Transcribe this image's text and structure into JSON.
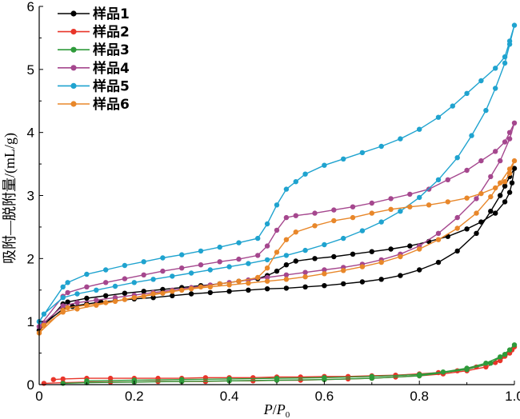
{
  "chart_data": {
    "type": "line",
    "xlabel_main": "P",
    "xlabel_sep": "/",
    "xlabel_sub_main": "P",
    "xlabel_sub": "0",
    "ylabel": "吸附—脱附量/(mL/g)",
    "xlim": [
      0,
      1.0
    ],
    "ylim": [
      0,
      6
    ],
    "xticks": [
      "0",
      "0.2",
      "0.4",
      "0.6",
      "0.8",
      "1.0"
    ],
    "yticks": [
      "0",
      "1",
      "2",
      "3",
      "4",
      "5",
      "6"
    ],
    "legend_position": "top-left",
    "series": [
      {
        "name": "样品1",
        "color": "#000000",
        "points": [
          [
            0.0,
            0.86
          ],
          [
            0.01,
            0.96
          ],
          [
            0.05,
            1.2
          ],
          [
            0.07,
            1.24
          ],
          [
            0.1,
            1.28
          ],
          [
            0.13,
            1.31
          ],
          [
            0.16,
            1.33
          ],
          [
            0.2,
            1.36
          ],
          [
            0.24,
            1.38
          ],
          [
            0.28,
            1.41
          ],
          [
            0.32,
            1.44
          ],
          [
            0.36,
            1.46
          ],
          [
            0.4,
            1.48
          ],
          [
            0.44,
            1.5
          ],
          [
            0.48,
            1.52
          ],
          [
            0.52,
            1.53
          ],
          [
            0.56,
            1.55
          ],
          [
            0.6,
            1.57
          ],
          [
            0.64,
            1.6
          ],
          [
            0.68,
            1.63
          ],
          [
            0.72,
            1.67
          ],
          [
            0.76,
            1.73
          ],
          [
            0.8,
            1.82
          ],
          [
            0.84,
            1.94
          ],
          [
            0.88,
            2.12
          ],
          [
            0.92,
            2.4
          ],
          [
            0.95,
            2.75
          ],
          [
            0.97,
            3.0
          ],
          [
            0.98,
            3.15
          ],
          [
            0.99,
            3.3
          ],
          [
            1.0,
            3.43
          ],
          [
            0.995,
            3.2
          ],
          [
            0.99,
            3.05
          ],
          [
            0.98,
            2.9
          ],
          [
            0.96,
            2.72
          ],
          [
            0.93,
            2.58
          ],
          [
            0.9,
            2.47
          ],
          [
            0.86,
            2.35
          ],
          [
            0.82,
            2.27
          ],
          [
            0.78,
            2.2
          ],
          [
            0.74,
            2.15
          ],
          [
            0.7,
            2.11
          ],
          [
            0.66,
            2.07
          ],
          [
            0.62,
            2.03
          ],
          [
            0.58,
            2.0
          ],
          [
            0.54,
            1.96
          ],
          [
            0.52,
            1.9
          ],
          [
            0.5,
            1.8
          ],
          [
            0.48,
            1.73
          ],
          [
            0.46,
            1.68
          ],
          [
            0.42,
            1.64
          ],
          [
            0.38,
            1.6
          ],
          [
            0.34,
            1.57
          ],
          [
            0.3,
            1.54
          ],
          [
            0.26,
            1.51
          ],
          [
            0.22,
            1.48
          ],
          [
            0.18,
            1.45
          ],
          [
            0.14,
            1.41
          ],
          [
            0.1,
            1.37
          ],
          [
            0.06,
            1.31
          ],
          [
            0.05,
            1.28
          ],
          [
            0.0,
            0.86
          ]
        ]
      },
      {
        "name": "样品2",
        "color": "#e8352a",
        "points": [
          [
            0.01,
            0.02
          ],
          [
            0.05,
            0.03
          ],
          [
            0.1,
            0.04
          ],
          [
            0.15,
            0.04
          ],
          [
            0.2,
            0.04
          ],
          [
            0.25,
            0.05
          ],
          [
            0.3,
            0.05
          ],
          [
            0.35,
            0.05
          ],
          [
            0.4,
            0.06
          ],
          [
            0.45,
            0.06
          ],
          [
            0.5,
            0.07
          ],
          [
            0.55,
            0.07
          ],
          [
            0.6,
            0.08
          ],
          [
            0.65,
            0.09
          ],
          [
            0.7,
            0.1
          ],
          [
            0.75,
            0.12
          ],
          [
            0.8,
            0.14
          ],
          [
            0.85,
            0.17
          ],
          [
            0.9,
            0.22
          ],
          [
            0.94,
            0.28
          ],
          [
            0.97,
            0.38
          ],
          [
            0.99,
            0.5
          ],
          [
            1.0,
            0.6
          ],
          [
            0.995,
            0.55
          ],
          [
            0.98,
            0.45
          ],
          [
            0.96,
            0.35
          ],
          [
            0.92,
            0.28
          ],
          [
            0.88,
            0.22
          ],
          [
            0.84,
            0.19
          ],
          [
            0.8,
            0.17
          ],
          [
            0.75,
            0.15
          ],
          [
            0.7,
            0.14
          ],
          [
            0.65,
            0.13
          ],
          [
            0.6,
            0.13
          ],
          [
            0.55,
            0.12
          ],
          [
            0.5,
            0.12
          ],
          [
            0.45,
            0.11
          ],
          [
            0.4,
            0.11
          ],
          [
            0.35,
            0.11
          ],
          [
            0.3,
            0.1
          ],
          [
            0.25,
            0.1
          ],
          [
            0.2,
            0.1
          ],
          [
            0.15,
            0.1
          ],
          [
            0.1,
            0.1
          ],
          [
            0.05,
            0.09
          ],
          [
            0.03,
            0.08
          ]
        ]
      },
      {
        "name": "样品3",
        "color": "#2e9a3a",
        "points": [
          [
            0.05,
            0.02
          ],
          [
            0.1,
            0.03
          ],
          [
            0.2,
            0.04
          ],
          [
            0.3,
            0.05
          ],
          [
            0.4,
            0.06
          ],
          [
            0.5,
            0.07
          ],
          [
            0.6,
            0.08
          ],
          [
            0.7,
            0.1
          ],
          [
            0.8,
            0.14
          ],
          [
            0.9,
            0.24
          ],
          [
            0.95,
            0.34
          ],
          [
            0.98,
            0.48
          ],
          [
            1.0,
            0.63
          ],
          [
            0.99,
            0.55
          ],
          [
            0.97,
            0.44
          ],
          [
            0.94,
            0.34
          ],
          [
            0.9,
            0.26
          ],
          [
            0.85,
            0.2
          ],
          [
            0.8,
            0.16
          ],
          [
            0.7,
            0.13
          ],
          [
            0.6,
            0.11
          ],
          [
            0.5,
            0.1
          ],
          [
            0.4,
            0.09
          ],
          [
            0.3,
            0.08
          ],
          [
            0.2,
            0.07
          ],
          [
            0.1,
            0.06
          ]
        ]
      },
      {
        "name": "样品4",
        "color": "#a5478e",
        "points": [
          [
            0.0,
            0.92
          ],
          [
            0.01,
            0.98
          ],
          [
            0.05,
            1.25
          ],
          [
            0.08,
            1.3
          ],
          [
            0.12,
            1.34
          ],
          [
            0.16,
            1.38
          ],
          [
            0.2,
            1.42
          ],
          [
            0.24,
            1.46
          ],
          [
            0.28,
            1.5
          ],
          [
            0.32,
            1.54
          ],
          [
            0.36,
            1.58
          ],
          [
            0.4,
            1.62
          ],
          [
            0.44,
            1.66
          ],
          [
            0.48,
            1.7
          ],
          [
            0.52,
            1.74
          ],
          [
            0.56,
            1.78
          ],
          [
            0.6,
            1.82
          ],
          [
            0.64,
            1.86
          ],
          [
            0.68,
            1.91
          ],
          [
            0.72,
            1.98
          ],
          [
            0.76,
            2.07
          ],
          [
            0.8,
            2.2
          ],
          [
            0.84,
            2.4
          ],
          [
            0.88,
            2.65
          ],
          [
            0.92,
            2.95
          ],
          [
            0.95,
            3.3
          ],
          [
            0.97,
            3.55
          ],
          [
            0.99,
            3.9
          ],
          [
            1.0,
            4.15
          ],
          [
            0.99,
            4.0
          ],
          [
            0.98,
            3.85
          ],
          [
            0.96,
            3.7
          ],
          [
            0.93,
            3.55
          ],
          [
            0.9,
            3.4
          ],
          [
            0.86,
            3.25
          ],
          [
            0.82,
            3.1
          ],
          [
            0.78,
            3.02
          ],
          [
            0.74,
            2.95
          ],
          [
            0.7,
            2.88
          ],
          [
            0.66,
            2.82
          ],
          [
            0.62,
            2.77
          ],
          [
            0.58,
            2.72
          ],
          [
            0.54,
            2.68
          ],
          [
            0.52,
            2.65
          ],
          [
            0.5,
            2.45
          ],
          [
            0.48,
            2.2
          ],
          [
            0.46,
            2.05
          ],
          [
            0.42,
            1.99
          ],
          [
            0.38,
            1.95
          ],
          [
            0.34,
            1.9
          ],
          [
            0.3,
            1.85
          ],
          [
            0.26,
            1.8
          ],
          [
            0.22,
            1.74
          ],
          [
            0.18,
            1.68
          ],
          [
            0.14,
            1.62
          ],
          [
            0.1,
            1.55
          ],
          [
            0.06,
            1.46
          ],
          [
            0.05,
            1.4
          ],
          [
            0.0,
            0.92
          ]
        ]
      },
      {
        "name": "样品5",
        "color": "#1fa3cf",
        "points": [
          [
            0.0,
            1.0
          ],
          [
            0.01,
            1.12
          ],
          [
            0.05,
            1.38
          ],
          [
            0.08,
            1.44
          ],
          [
            0.12,
            1.5
          ],
          [
            0.16,
            1.56
          ],
          [
            0.2,
            1.62
          ],
          [
            0.24,
            1.67
          ],
          [
            0.28,
            1.72
          ],
          [
            0.32,
            1.77
          ],
          [
            0.36,
            1.82
          ],
          [
            0.4,
            1.87
          ],
          [
            0.44,
            1.92
          ],
          [
            0.48,
            1.98
          ],
          [
            0.52,
            2.05
          ],
          [
            0.56,
            2.13
          ],
          [
            0.6,
            2.22
          ],
          [
            0.64,
            2.32
          ],
          [
            0.68,
            2.44
          ],
          [
            0.72,
            2.58
          ],
          [
            0.76,
            2.75
          ],
          [
            0.8,
            2.97
          ],
          [
            0.84,
            3.25
          ],
          [
            0.88,
            3.6
          ],
          [
            0.91,
            3.95
          ],
          [
            0.94,
            4.35
          ],
          [
            0.96,
            4.7
          ],
          [
            0.98,
            5.1
          ],
          [
            0.99,
            5.4
          ],
          [
            1.0,
            5.7
          ],
          [
            0.99,
            5.45
          ],
          [
            0.98,
            5.2
          ],
          [
            0.96,
            5.02
          ],
          [
            0.93,
            4.82
          ],
          [
            0.9,
            4.62
          ],
          [
            0.87,
            4.42
          ],
          [
            0.84,
            4.24
          ],
          [
            0.8,
            4.05
          ],
          [
            0.76,
            3.9
          ],
          [
            0.72,
            3.78
          ],
          [
            0.68,
            3.68
          ],
          [
            0.64,
            3.58
          ],
          [
            0.6,
            3.48
          ],
          [
            0.56,
            3.34
          ],
          [
            0.54,
            3.22
          ],
          [
            0.52,
            3.1
          ],
          [
            0.5,
            2.85
          ],
          [
            0.48,
            2.55
          ],
          [
            0.46,
            2.32
          ],
          [
            0.42,
            2.25
          ],
          [
            0.38,
            2.18
          ],
          [
            0.34,
            2.12
          ],
          [
            0.3,
            2.06
          ],
          [
            0.26,
            2.01
          ],
          [
            0.22,
            1.95
          ],
          [
            0.18,
            1.89
          ],
          [
            0.14,
            1.82
          ],
          [
            0.1,
            1.75
          ],
          [
            0.06,
            1.62
          ],
          [
            0.05,
            1.55
          ],
          [
            0.0,
            1.0
          ]
        ]
      },
      {
        "name": "样品6",
        "color": "#e8872a",
        "points": [
          [
            0.0,
            0.82
          ],
          [
            0.01,
            0.94
          ],
          [
            0.05,
            1.15
          ],
          [
            0.08,
            1.2
          ],
          [
            0.12,
            1.26
          ],
          [
            0.16,
            1.32
          ],
          [
            0.2,
            1.38
          ],
          [
            0.24,
            1.44
          ],
          [
            0.28,
            1.48
          ],
          [
            0.32,
            1.52
          ],
          [
            0.36,
            1.55
          ],
          [
            0.4,
            1.58
          ],
          [
            0.44,
            1.61
          ],
          [
            0.48,
            1.64
          ],
          [
            0.52,
            1.67
          ],
          [
            0.56,
            1.71
          ],
          [
            0.6,
            1.76
          ],
          [
            0.64,
            1.81
          ],
          [
            0.68,
            1.87
          ],
          [
            0.72,
            1.94
          ],
          [
            0.76,
            2.03
          ],
          [
            0.8,
            2.15
          ],
          [
            0.84,
            2.3
          ],
          [
            0.88,
            2.48
          ],
          [
            0.92,
            2.72
          ],
          [
            0.95,
            2.98
          ],
          [
            0.97,
            3.2
          ],
          [
            0.99,
            3.42
          ],
          [
            1.0,
            3.55
          ],
          [
            0.99,
            3.35
          ],
          [
            0.98,
            3.22
          ],
          [
            0.96,
            3.12
          ],
          [
            0.93,
            3.03
          ],
          [
            0.9,
            2.96
          ],
          [
            0.86,
            2.9
          ],
          [
            0.82,
            2.85
          ],
          [
            0.78,
            2.82
          ],
          [
            0.74,
            2.78
          ],
          [
            0.7,
            2.72
          ],
          [
            0.66,
            2.65
          ],
          [
            0.62,
            2.6
          ],
          [
            0.58,
            2.52
          ],
          [
            0.54,
            2.42
          ],
          [
            0.52,
            2.3
          ],
          [
            0.5,
            2.1
          ],
          [
            0.48,
            1.85
          ],
          [
            0.46,
            1.7
          ],
          [
            0.42,
            1.64
          ],
          [
            0.38,
            1.6
          ],
          [
            0.34,
            1.55
          ],
          [
            0.3,
            1.5
          ],
          [
            0.26,
            1.45
          ],
          [
            0.22,
            1.4
          ],
          [
            0.18,
            1.35
          ],
          [
            0.14,
            1.3
          ],
          [
            0.1,
            1.26
          ],
          [
            0.06,
            1.22
          ],
          [
            0.05,
            1.18
          ],
          [
            0.0,
            0.82
          ]
        ]
      }
    ]
  }
}
